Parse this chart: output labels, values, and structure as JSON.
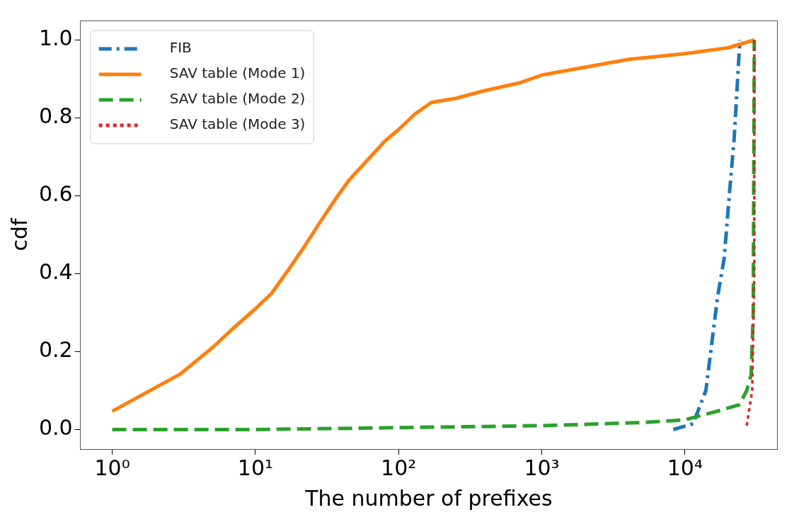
{
  "chart_data": {
    "type": "line",
    "xlabel": "The number of prefixes",
    "ylabel": "cdf",
    "log": "x",
    "xlim": [
      0.6,
      44000
    ],
    "xticks": [
      {
        "value": 1,
        "label": "10⁰"
      },
      {
        "value": 10,
        "label": "10¹"
      },
      {
        "value": 100,
        "label": "10²"
      },
      {
        "value": 1000,
        "label": "10³"
      },
      {
        "value": 10000,
        "label": "10⁴"
      }
    ],
    "ylim": [
      -0.05,
      1.05
    ],
    "yticks": [
      {
        "value": 0,
        "label": "0.0"
      },
      {
        "value": 0.2,
        "label": "0.2"
      },
      {
        "value": 0.4,
        "label": "0.4"
      },
      {
        "value": 0.6,
        "label": "0.6"
      },
      {
        "value": 0.8,
        "label": "0.8"
      },
      {
        "value": 1,
        "label": "1.0"
      }
    ],
    "grid": false,
    "legend": "top left",
    "marker": "none",
    "series": [
      {
        "name": "FIB",
        "color": "#1f77b4",
        "line_style": "dashdot",
        "x": [
          8300,
          11400,
          14000,
          16900,
          18800,
          20500,
          22100,
          24200
        ],
        "values": [
          0.0,
          0.015,
          0.1,
          0.34,
          0.44,
          0.61,
          0.75,
          1.0
        ]
      },
      {
        "name": "SAV table (Mode 1)",
        "color": "#ff7f0e",
        "line_style": "solid",
        "x": [
          1,
          3,
          5,
          7,
          10,
          13,
          17,
          22,
          28,
          36,
          45,
          60,
          80,
          100,
          130,
          170,
          250,
          400,
          700,
          1000,
          2000,
          4000,
          10000,
          20000,
          30500
        ],
        "values": [
          0.047,
          0.143,
          0.21,
          0.26,
          0.31,
          0.35,
          0.41,
          0.47,
          0.53,
          0.59,
          0.64,
          0.69,
          0.74,
          0.77,
          0.81,
          0.84,
          0.85,
          0.87,
          0.89,
          0.91,
          0.93,
          0.95,
          0.965,
          0.98,
          1.0
        ]
      },
      {
        "name": "SAV table (Mode 2)",
        "color": "#2ca02c",
        "line_style": "dashed",
        "x": [
          1,
          10,
          100,
          1000,
          5000,
          10000,
          18000,
          24000,
          27000,
          29000,
          30000,
          30500
        ],
        "values": [
          0.0,
          0.0,
          0.005,
          0.01,
          0.018,
          0.025,
          0.05,
          0.064,
          0.1,
          0.14,
          0.3,
          1.0
        ]
      },
      {
        "name": "SAV table (Mode 3)",
        "color": "#d62728",
        "line_style": "dotted",
        "x": [
          27000,
          29500,
          30500,
          30500
        ],
        "values": [
          0.01,
          0.1,
          0.4,
          1.0
        ]
      }
    ]
  }
}
